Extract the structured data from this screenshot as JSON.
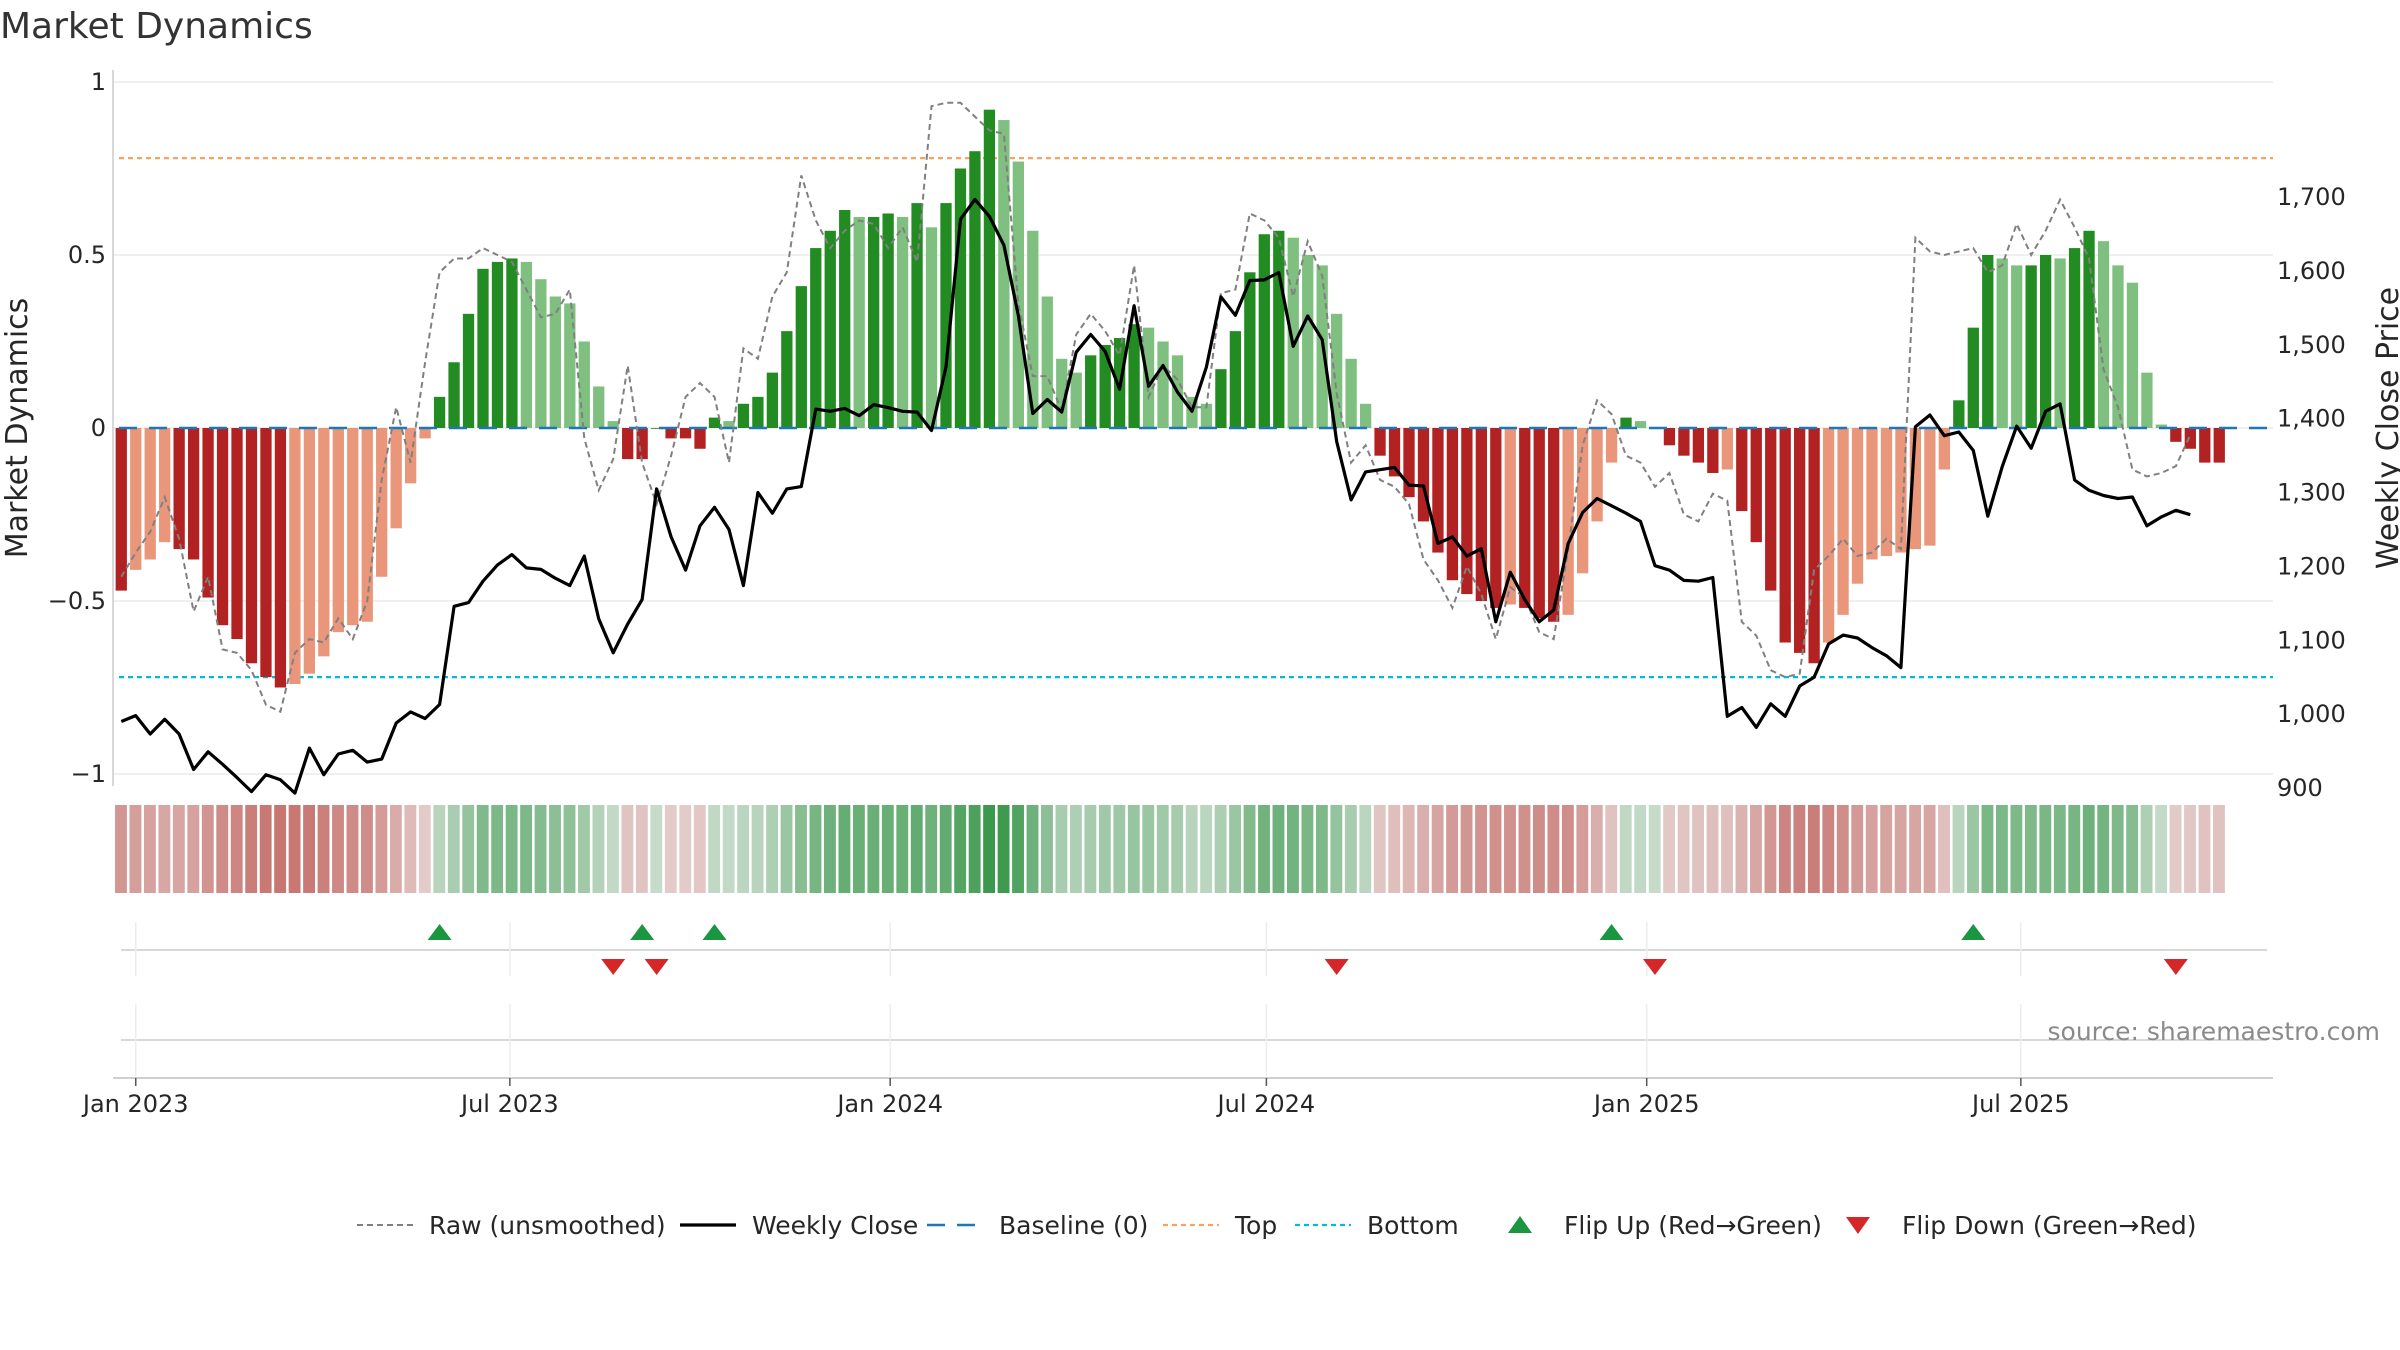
{
  "chart_data": {
    "type": "bar",
    "title": "Market Dynamics",
    "ylabel_left": "Market Dynamics",
    "ylabel_right": "Weekly Close Price",
    "ylim_left": [
      -1,
      1
    ],
    "ylim_right": [
      830,
      1750
    ],
    "yticks_left": [
      {
        "v": 1,
        "label": "1"
      },
      {
        "v": 0.5,
        "label": "0.5"
      },
      {
        "v": 0,
        "label": "0"
      },
      {
        "v": -0.5,
        "label": "−0.5"
      },
      {
        "v": -1,
        "label": "−1"
      }
    ],
    "yticks_right": [
      {
        "v": 1700,
        "label": "1,700"
      },
      {
        "v": 1600,
        "label": "1,600"
      },
      {
        "v": 1500,
        "label": "1,500"
      },
      {
        "v": 1400,
        "label": "1,400"
      },
      {
        "v": 1300,
        "label": "1,300"
      },
      {
        "v": 1200,
        "label": "1,200"
      },
      {
        "v": 1100,
        "label": "1,100"
      },
      {
        "v": 1000,
        "label": "1,000"
      },
      {
        "v": 900,
        "label": "900"
      }
    ],
    "x_ticks": [
      {
        "date": "2023-01-01",
        "label": "Jan 2023"
      },
      {
        "date": "2023-07-01",
        "label": "Jul 2023"
      },
      {
        "date": "2024-01-01",
        "label": "Jan 2024"
      },
      {
        "date": "2024-07-01",
        "label": "Jul 2024"
      },
      {
        "date": "2025-01-01",
        "label": "Jan 2025"
      },
      {
        "date": "2025-07-01",
        "label": "Jul 2025"
      }
    ],
    "x_range": [
      "2022-12-21",
      "2025-10-31"
    ],
    "start_date": "2022-12-25",
    "week_step_days": 7,
    "top_level": 0.78,
    "bottom_level": -0.72,
    "baseline_level": 0,
    "values": [
      -0.47,
      -0.41,
      -0.38,
      -0.33,
      -0.35,
      -0.38,
      -0.49,
      -0.57,
      -0.61,
      -0.68,
      -0.72,
      -0.75,
      -0.74,
      -0.71,
      -0.66,
      -0.59,
      -0.57,
      -0.56,
      -0.43,
      -0.29,
      -0.16,
      -0.03,
      0.09,
      0.19,
      0.33,
      0.46,
      0.48,
      0.49,
      0.48,
      0.43,
      0.38,
      0.36,
      0.25,
      0.12,
      0.02,
      -0.09,
      -0.09,
      0.0,
      -0.03,
      -0.03,
      -0.06,
      0.03,
      0.02,
      0.07,
      0.09,
      0.16,
      0.28,
      0.41,
      0.52,
      0.57,
      0.63,
      0.61,
      0.61,
      0.62,
      0.61,
      0.65,
      0.58,
      0.65,
      0.75,
      0.8,
      0.92,
      0.89,
      0.77,
      0.57,
      0.38,
      0.2,
      0.16,
      0.21,
      0.24,
      0.26,
      0.3,
      0.29,
      0.25,
      0.21,
      0.09,
      0.07,
      0.17,
      0.28,
      0.45,
      0.56,
      0.57,
      0.55,
      0.5,
      0.47,
      0.33,
      0.2,
      0.07,
      -0.08,
      -0.14,
      -0.2,
      -0.27,
      -0.36,
      -0.44,
      -0.48,
      -0.5,
      -0.52,
      -0.51,
      -0.52,
      -0.55,
      -0.56,
      -0.54,
      -0.42,
      -0.27,
      -0.1,
      0.03,
      0.02,
      0.0,
      -0.05,
      -0.08,
      -0.1,
      -0.13,
      -0.12,
      -0.24,
      -0.33,
      -0.47,
      -0.62,
      -0.65,
      -0.68,
      -0.62,
      -0.54,
      -0.45,
      -0.38,
      -0.37,
      -0.36,
      -0.35,
      -0.34,
      -0.12,
      0.08,
      0.29,
      0.5,
      0.49,
      0.47,
      0.47,
      0.5,
      0.49,
      0.52,
      0.57,
      0.54,
      0.47,
      0.42,
      0.16,
      0.01,
      -0.04,
      -0.06,
      -0.1,
      -0.1
    ],
    "raw_values": [
      -0.43,
      -0.36,
      -0.3,
      -0.2,
      -0.32,
      -0.53,
      -0.43,
      -0.64,
      -0.65,
      -0.7,
      -0.8,
      -0.82,
      -0.65,
      -0.61,
      -0.62,
      -0.55,
      -0.61,
      -0.5,
      -0.15,
      0.06,
      -0.1,
      0.19,
      0.45,
      0.49,
      0.49,
      0.52,
      0.5,
      0.48,
      0.4,
      0.32,
      0.33,
      0.4,
      -0.03,
      -0.18,
      -0.09,
      0.18,
      -0.1,
      -0.22,
      -0.08,
      0.09,
      0.13,
      0.09,
      -0.1,
      0.23,
      0.2,
      0.38,
      0.45,
      0.73,
      0.6,
      0.52,
      0.57,
      0.6,
      0.59,
      0.52,
      0.58,
      0.48,
      0.93,
      0.94,
      0.94,
      0.9,
      0.86,
      0.85,
      0.36,
      0.15,
      0.15,
      0.05,
      0.27,
      0.33,
      0.28,
      0.21,
      0.47,
      0.09,
      0.18,
      0.14,
      0.06,
      0.06,
      0.39,
      0.4,
      0.62,
      0.6,
      0.55,
      0.38,
      0.54,
      0.44,
      0.1,
      -0.1,
      -0.05,
      -0.15,
      -0.17,
      -0.22,
      -0.38,
      -0.44,
      -0.52,
      -0.4,
      -0.48,
      -0.61,
      -0.46,
      -0.49,
      -0.59,
      -0.61,
      -0.35,
      -0.05,
      0.08,
      0.04,
      -0.08,
      -0.1,
      -0.17,
      -0.13,
      -0.25,
      -0.27,
      -0.19,
      -0.21,
      -0.56,
      -0.6,
      -0.7,
      -0.72,
      -0.71,
      -0.41,
      -0.37,
      -0.32,
      -0.37,
      -0.36,
      -0.32,
      -0.35,
      0.55,
      0.51,
      0.5,
      0.51,
      0.52,
      0.45,
      0.47,
      0.59,
      0.5,
      0.57,
      0.66,
      0.58,
      0.49,
      0.17,
      0.06,
      -0.12,
      -0.14,
      -0.13,
      -0.11,
      -0.02
    ],
    "weekly_close": [
      990,
      998,
      973,
      993,
      973,
      925,
      949,
      932,
      914,
      895,
      918,
      911,
      893,
      954,
      918,
      946,
      951,
      935,
      939,
      988,
      1003,
      994,
      1013,
      1146,
      1151,
      1180,
      1202,
      1216,
      1198,
      1196,
      1184,
      1174,
      1214,
      1129,
      1083,
      1122,
      1155,
      1305,
      1240,
      1195,
      1255,
      1280,
      1250,
      1174,
      1300,
      1272,
      1305,
      1308,
      1413,
      1410,
      1414,
      1404,
      1419,
      1415,
      1410,
      1409,
      1384,
      1470,
      1670,
      1697,
      1674,
      1635,
      1540,
      1407,
      1426,
      1409,
      1490,
      1514,
      1491,
      1440,
      1553,
      1444,
      1472,
      1436,
      1410,
      1470,
      1565,
      1540,
      1587,
      1588,
      1598,
      1498,
      1539,
      1507,
      1369,
      1290,
      1328,
      1331,
      1334,
      1310,
      1309,
      1231,
      1240,
      1214,
      1224,
      1125,
      1192,
      1155,
      1125,
      1141,
      1231,
      1273,
      1292,
      1282,
      1272,
      1261,
      1201,
      1195,
      1181,
      1180,
      1185,
      997,
      1009,
      982,
      1014,
      997,
      1038,
      1050,
      1095,
      1107,
      1103,
      1090,
      1079,
      1063,
      1389,
      1405,
      1377,
      1382,
      1357,
      1268,
      1335,
      1390,
      1360,
      1410,
      1420,
      1317,
      1303,
      1296,
      1292,
      1294,
      1255,
      1267,
      1276,
      1270
    ],
    "flip_up_weeks": [
      22,
      36,
      41,
      103,
      128
    ],
    "flip_down_weeks": [
      34,
      37,
      84,
      106,
      142
    ],
    "strip_colors": "diverging red/green by market dynamics value",
    "legend": [
      {
        "key": "raw",
        "label": "Raw (unsmoothed)"
      },
      {
        "key": "close",
        "label": "Weekly Close"
      },
      {
        "key": "baseline",
        "label": "Baseline (0)"
      },
      {
        "key": "top",
        "label": "Top"
      },
      {
        "key": "bottom",
        "label": "Bottom"
      },
      {
        "key": "flipup",
        "label": "Flip Up (Red→Green)"
      },
      {
        "key": "flipdown",
        "label": "Flip Down (Green→Red)"
      }
    ],
    "legend_position": "bottom-center",
    "grid": true,
    "source": "source: sharemaestro.com",
    "colors": {
      "pos_strong": "#228b22",
      "pos_light": "#7fbf7f",
      "neg_strong": "#b22222",
      "neg_light": "#e9967a",
      "raw_line": "#808080",
      "close_line": "#000000",
      "baseline": "#1f77b4",
      "top": "#f4a460",
      "bottom": "#00bcd4",
      "flip_up": "#1a9641",
      "flip_down": "#d62728"
    }
  }
}
